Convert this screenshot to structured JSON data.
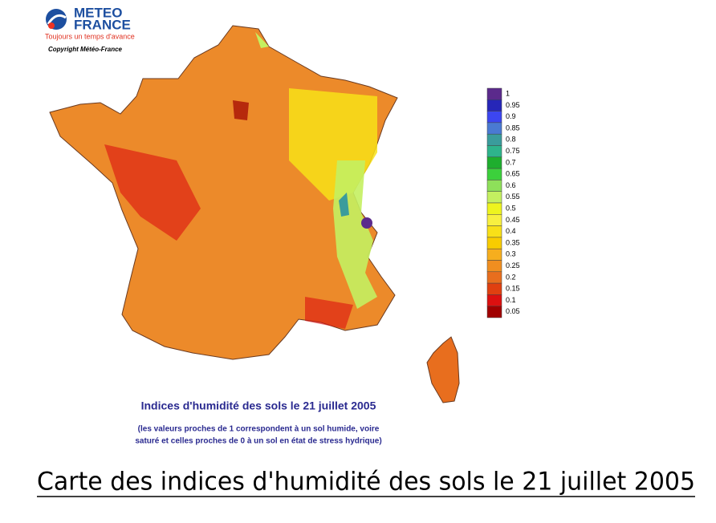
{
  "header": {
    "logo": "METEO",
    "logo_line2": "FRANCE",
    "tagline": "Toujours un temps d'avance",
    "copyright": "Copyright Météo-France"
  },
  "legend": [
    {
      "label": "1",
      "color": "#5b2a8c"
    },
    {
      "label": "0.95",
      "color": "#2626b8"
    },
    {
      "label": "0.9",
      "color": "#3c46f0"
    },
    {
      "label": "0.85",
      "color": "#4a7ad2"
    },
    {
      "label": "0.8",
      "color": "#3a9c9c"
    },
    {
      "label": "0.75",
      "color": "#2eb48c"
    },
    {
      "label": "0.7",
      "color": "#1eae2e"
    },
    {
      "label": "0.65",
      "color": "#3cd03c"
    },
    {
      "label": "0.6",
      "color": "#8ee05a"
    },
    {
      "label": "0.55",
      "color": "#c4f060"
    },
    {
      "label": "0.5",
      "color": "#eef41e"
    },
    {
      "label": "0.45",
      "color": "#f8f040"
    },
    {
      "label": "0.4",
      "color": "#f8e018"
    },
    {
      "label": "0.35",
      "color": "#f8cc00"
    },
    {
      "label": "0.3",
      "color": "#f6ae1e"
    },
    {
      "label": "0.25",
      "color": "#f08e20"
    },
    {
      "label": "0.2",
      "color": "#e86e1e"
    },
    {
      "label": "0.15",
      "color": "#e04010"
    },
    {
      "label": "0.1",
      "color": "#dc1010"
    },
    {
      "label": "0.05",
      "color": "#a00000"
    }
  ],
  "map": {
    "title": "Indices d'humidité des sols le 21 juillet 2005",
    "note_line1": "(les valeurs proches de 1 correspondent à un sol humide, voire",
    "note_line2": "saturé et celles proches de 0 à un sol en état de stress hydrique)"
  },
  "caption": "Carte des indices d'humidité des sols le 21 juillet 2005"
}
